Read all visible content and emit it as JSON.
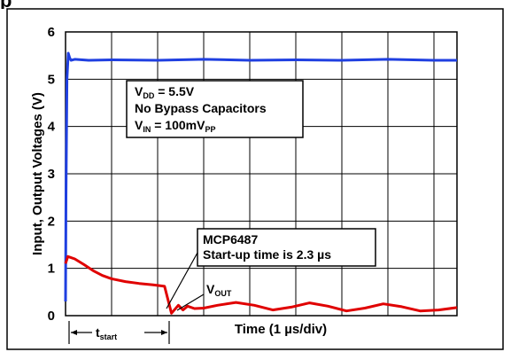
{
  "page": {
    "top_title_fragment": "p"
  },
  "chart_data": {
    "type": "line",
    "xlabel": "Time (1 µs/div)",
    "ylabel": "Input, Output Voltages (V)",
    "xlim": [
      0,
      8.5
    ],
    "ylim": [
      0,
      6
    ],
    "yticks": [
      "0",
      "1",
      "2",
      "3",
      "4",
      "5",
      "6"
    ],
    "x_divisions": 8.5,
    "grid": true,
    "series": [
      {
        "name": "V_DD",
        "color": "#1f3fe0",
        "x": [
          0.0,
          0.01,
          0.03,
          0.06,
          0.09,
          0.12,
          0.2,
          0.5,
          1.0,
          2.0,
          3.0,
          4.0,
          5.0,
          6.0,
          7.0,
          8.0,
          8.5
        ],
        "y": [
          0.3,
          2.5,
          5.0,
          5.55,
          5.45,
          5.4,
          5.42,
          5.4,
          5.41,
          5.4,
          5.42,
          5.4,
          5.41,
          5.4,
          5.42,
          5.4,
          5.4
        ]
      },
      {
        "name": "V_OUT",
        "color": "#e00000",
        "x": [
          0.0,
          0.05,
          0.2,
          0.4,
          0.6,
          0.8,
          1.0,
          1.3,
          1.6,
          1.9,
          2.15,
          2.3,
          2.45,
          2.55,
          2.65,
          2.8,
          3.0,
          3.3,
          3.7,
          4.1,
          4.5,
          4.9,
          5.3,
          5.7,
          6.1,
          6.5,
          6.9,
          7.3,
          7.7,
          8.1,
          8.5
        ],
        "y": [
          1.1,
          1.25,
          1.2,
          1.08,
          0.95,
          0.85,
          0.78,
          0.72,
          0.68,
          0.65,
          0.62,
          0.05,
          0.22,
          0.12,
          0.2,
          0.15,
          0.16,
          0.22,
          0.28,
          0.22,
          0.12,
          0.18,
          0.27,
          0.2,
          0.1,
          0.16,
          0.25,
          0.19,
          0.1,
          0.12,
          0.17
        ]
      }
    ],
    "annotations": {
      "conditions": [
        {
          "main": "V",
          "sub": "DD",
          "rest": " = 5.5V"
        },
        {
          "main": "No Bypass Capacitors",
          "sub": "",
          "rest": ""
        },
        {
          "main": "V",
          "sub": "IN",
          "rest": " = 100mV",
          "sub2": "PP"
        }
      ],
      "startup_note": [
        "MCP6487",
        "Start-up time is 2.3 µs"
      ],
      "vout_label": {
        "main": "V",
        "sub": "OUT"
      },
      "tstart_label": {
        "main": "t",
        "sub": "start"
      }
    }
  }
}
